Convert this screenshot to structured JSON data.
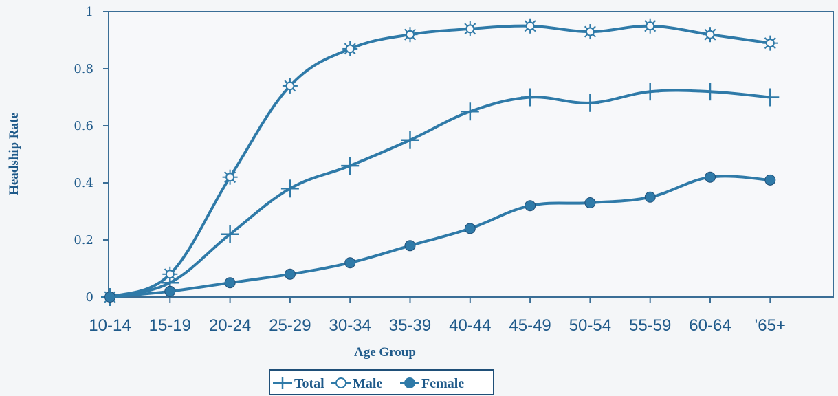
{
  "chart_data": {
    "type": "line",
    "title": "",
    "xlabel": "Age Group",
    "ylabel": "Headship Rate",
    "categories": [
      "10-14",
      "15-19",
      "20-24",
      "25-29",
      "30-34",
      "35-39",
      "40-44",
      "45-49",
      "50-54",
      "55-59",
      "60-64",
      "'65+"
    ],
    "ylim": [
      0,
      1
    ],
    "yticks": [
      "0",
      "0.2",
      "0.4",
      "0.6",
      "0.8",
      "1"
    ],
    "grid": false,
    "legend_position": "bottom-center",
    "series": [
      {
        "name": "Total",
        "marker": "plus",
        "color": "#2f7aa8",
        "values": [
          0,
          0.05,
          0.22,
          0.38,
          0.46,
          0.55,
          0.65,
          0.7,
          0.68,
          0.72,
          0.72,
          0.7
        ]
      },
      {
        "name": "Male",
        "marker": "sunburst",
        "color": "#2f7aa8",
        "values": [
          0,
          0.08,
          0.42,
          0.74,
          0.87,
          0.92,
          0.94,
          0.95,
          0.93,
          0.95,
          0.92,
          0.89
        ]
      },
      {
        "name": "Female",
        "marker": "circle",
        "color": "#2f7aa8",
        "values": [
          0,
          0.02,
          0.05,
          0.08,
          0.12,
          0.18,
          0.24,
          0.32,
          0.33,
          0.35,
          0.42,
          0.41
        ]
      }
    ]
  }
}
